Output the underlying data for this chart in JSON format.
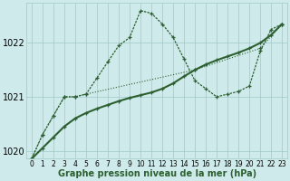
{
  "xlabel": "Graphe pression niveau de la mer (hPa)",
  "x": [
    0,
    1,
    2,
    3,
    4,
    5,
    6,
    7,
    8,
    9,
    10,
    11,
    12,
    13,
    14,
    15,
    16,
    17,
    18,
    19,
    20,
    21,
    22,
    23
  ],
  "series_peak": [
    1019.85,
    1020.3,
    1020.65,
    1021.0,
    1021.0,
    1021.05,
    1021.35,
    1021.65,
    1021.95,
    1022.1,
    1022.6,
    1022.55,
    1022.35,
    1022.1,
    1021.7,
    1021.3,
    1021.15,
    1021.0,
    1021.05,
    1021.1,
    1021.2,
    1021.85,
    1022.25,
    1022.35
  ],
  "series_trend": [
    1019.85,
    1020.05,
    1020.25,
    1020.45,
    1020.6,
    1020.7,
    1020.78,
    1020.85,
    1020.92,
    1020.98,
    1021.03,
    1021.08,
    1021.15,
    1021.25,
    1021.38,
    1021.5,
    1021.6,
    1021.68,
    1021.75,
    1021.82,
    1021.9,
    1022.0,
    1022.15,
    1022.35
  ],
  "series_diag": [
    1019.85,
    1020.3,
    1020.65,
    1021.0,
    1021.0,
    1021.05,
    null,
    null,
    null,
    null,
    null,
    null,
    null,
    null,
    null,
    1021.5,
    null,
    null,
    null,
    null,
    null,
    1021.9,
    null,
    1022.35
  ],
  "ylim_min": 1019.85,
  "ylim_max": 1022.75,
  "yticks": [
    1020,
    1021,
    1022
  ],
  "line_color": "#2d6030",
  "bg_color": "#ceeaea",
  "grid_color": "#a0c8c8",
  "tick_fontsize": 5.5,
  "label_fontsize": 7,
  "marker_size": 3.5
}
